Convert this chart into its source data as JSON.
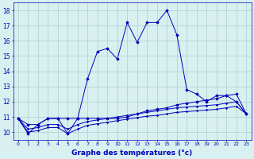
{
  "xlabel": "Graphe des températures (°c)",
  "x": [
    0,
    1,
    2,
    3,
    4,
    5,
    6,
    7,
    8,
    9,
    10,
    11,
    12,
    13,
    14,
    15,
    16,
    17,
    18,
    19,
    20,
    21,
    22,
    23
  ],
  "line1": [
    10.9,
    9.9,
    10.5,
    10.9,
    10.9,
    9.9,
    10.9,
    13.5,
    15.3,
    15.5,
    14.8,
    17.2,
    15.9,
    17.2,
    17.2,
    18.0,
    16.4,
    12.8,
    12.5,
    12.0,
    12.4,
    12.4,
    12.0,
    11.2
  ],
  "line2": [
    10.9,
    10.5,
    10.5,
    10.9,
    10.9,
    10.9,
    10.9,
    10.9,
    10.9,
    10.9,
    10.9,
    11.0,
    11.2,
    11.4,
    11.5,
    11.6,
    11.8,
    11.9,
    12.0,
    12.1,
    12.2,
    12.4,
    12.5,
    11.2
  ],
  "line3": [
    10.9,
    10.2,
    10.3,
    10.5,
    10.5,
    10.2,
    10.5,
    10.7,
    10.8,
    10.9,
    11.0,
    11.1,
    11.2,
    11.3,
    11.4,
    11.5,
    11.6,
    11.65,
    11.7,
    11.75,
    11.8,
    11.9,
    12.0,
    11.2
  ],
  "line4": [
    10.9,
    10.0,
    10.1,
    10.3,
    10.3,
    9.9,
    10.2,
    10.45,
    10.55,
    10.65,
    10.75,
    10.85,
    10.95,
    11.05,
    11.1,
    11.2,
    11.3,
    11.35,
    11.4,
    11.45,
    11.5,
    11.6,
    11.7,
    11.2
  ],
  "line_color": "#0000bb",
  "bg_color": "#d8f0f0",
  "grid_color": "#aacece",
  "ylim": [
    9.5,
    18.5
  ],
  "yticks": [
    10,
    11,
    12,
    13,
    14,
    15,
    16,
    17,
    18
  ],
  "xlim": [
    -0.5,
    23.5
  ]
}
